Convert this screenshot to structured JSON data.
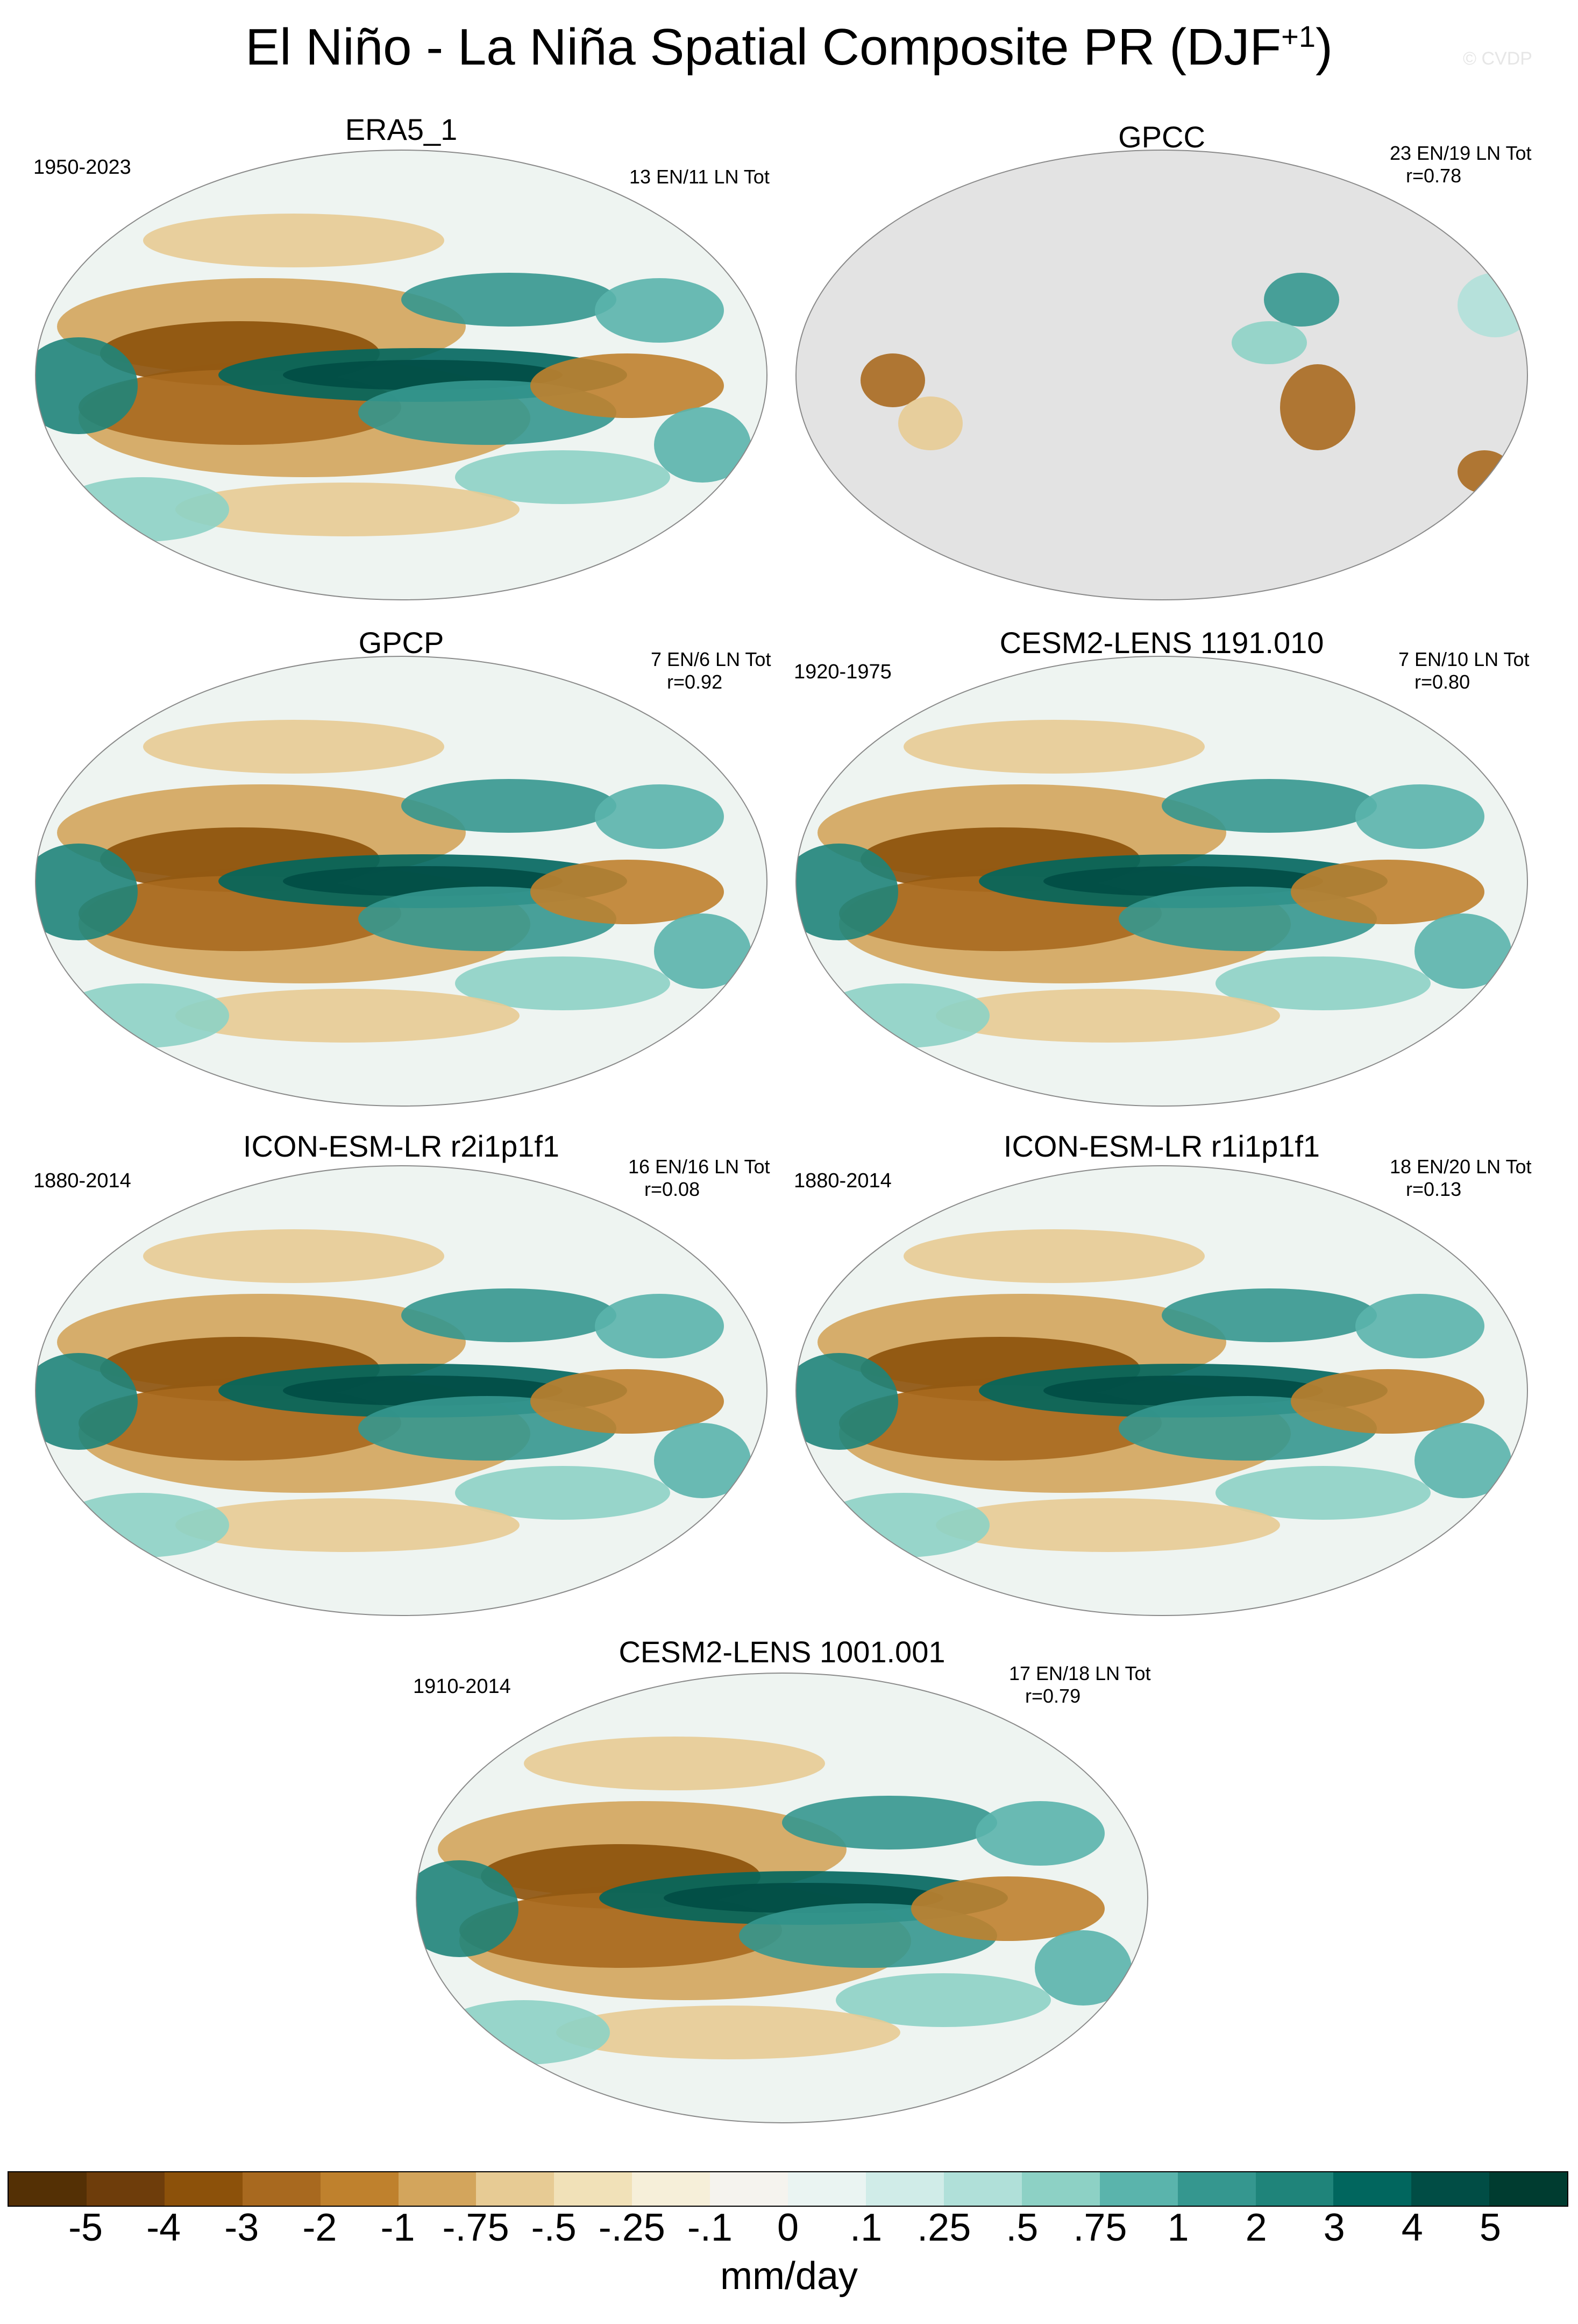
{
  "title": "El Niño - La Niña Spatial Composite PR (DJF",
  "title_sup": "+1",
  "title_end": ")",
  "watermark": "© CVDP",
  "panels": [
    {
      "title": "ERA5_1",
      "period": "1950-2023",
      "meta": "13 EN/11 LN Tot",
      "r": "",
      "mask": false
    },
    {
      "title": "GPCC",
      "period": "",
      "meta": "23 EN/19 LN Tot",
      "r": "r=0.78",
      "mask": true
    },
    {
      "title": "GPCP",
      "period": "",
      "meta": "7 EN/6 LN Tot",
      "r": "r=0.92",
      "mask": false
    },
    {
      "title": "CESM2-LENS 1191.010",
      "period": "1920-1975",
      "meta": "7 EN/10 LN Tot",
      "r": "r=0.80",
      "mask": false
    },
    {
      "title": "ICON-ESM-LR r2i1p1f1",
      "period": "1880-2014",
      "meta": "16 EN/16 LN Tot",
      "r": "r=0.08",
      "mask": false
    },
    {
      "title": "ICON-ESM-LR r1i1p1f1",
      "period": "1880-2014",
      "meta": "18 EN/20 LN Tot",
      "r": "r=0.13",
      "mask": false
    },
    {
      "title": "CESM2-LENS 1001.001",
      "period": "1910-2014",
      "meta": "17 EN/18 LN Tot",
      "r": "r=0.79",
      "mask": false
    }
  ],
  "colorbar": {
    "colors": [
      "#543005",
      "#6e3d0b",
      "#8c510a",
      "#a8691f",
      "#bf812d",
      "#d3a55c",
      "#e7cb94",
      "#f1e1b8",
      "#f6efd9",
      "#f5f3ee",
      "#eaf4f2",
      "#d0ece8",
      "#b0e0d9",
      "#8dd1c5",
      "#5ab4ac",
      "#35978f",
      "#1f847a",
      "#01665e",
      "#014d45",
      "#003c30"
    ],
    "ticks": [
      "-5",
      "-4",
      "-3",
      "-2",
      "-1",
      "-.75",
      "-.5",
      "-.25",
      "-.1",
      "0",
      ".1",
      ".25",
      ".5",
      ".75",
      "1",
      "2",
      "3",
      "4",
      "5"
    ],
    "unit": "mm/day"
  }
}
